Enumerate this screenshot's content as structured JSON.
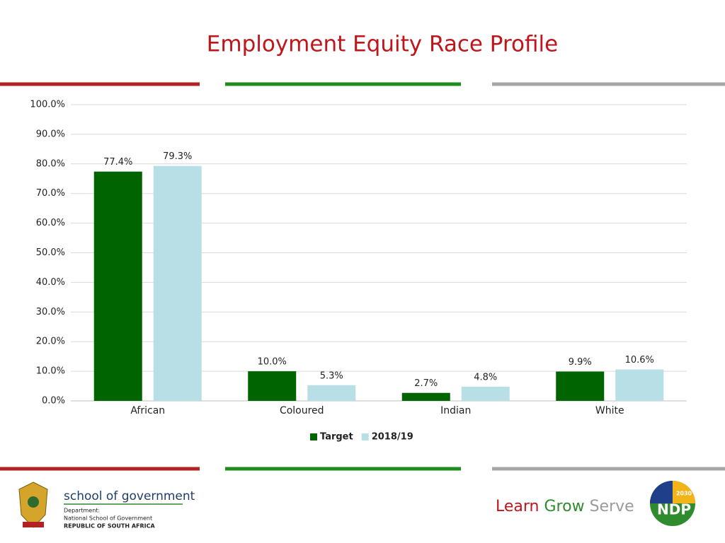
{
  "chart_data": {
    "type": "bar",
    "title": "Employment Equity Race Profile",
    "categories": [
      "African",
      "Coloured",
      "Indian",
      "White"
    ],
    "series": [
      {
        "name": "Target",
        "color": "#006400",
        "values": [
          77.4,
          10.0,
          2.7,
          9.9
        ],
        "value_labels": [
          "77.4%",
          "10.0%",
          "2.7%",
          "9.9%"
        ]
      },
      {
        "name": "2018/19",
        "color": "#b9dfe6",
        "values": [
          79.3,
          5.3,
          4.8,
          10.6
        ],
        "value_labels": [
          "79.3%",
          "5.3%",
          "4.8%",
          "10.6%"
        ]
      }
    ],
    "ylim": [
      0,
      100
    ],
    "yticks": [
      {
        "value": 0,
        "label": "0.0%"
      },
      {
        "value": 10,
        "label": "10.0%"
      },
      {
        "value": 20,
        "label": "20.0%"
      },
      {
        "value": 30,
        "label": "30.0%"
      },
      {
        "value": 40,
        "label": "40.0%"
      },
      {
        "value": 50,
        "label": "50.0%"
      },
      {
        "value": 60,
        "label": "60.0%"
      },
      {
        "value": 70,
        "label": "70.0%"
      },
      {
        "value": 80,
        "label": "80.0%"
      },
      {
        "value": 90,
        "label": "90.0%"
      },
      {
        "value": 100,
        "label": "100.0%"
      }
    ],
    "grid": true,
    "legend": "bottom"
  },
  "footer": {
    "brand": "school of government",
    "department": "Department:",
    "school": "National School of Government",
    "country": "REPUBLIC OF SOUTH AFRICA",
    "tagline": [
      "Learn",
      "Grow",
      "Serve"
    ],
    "logo_text": "NDP",
    "logo_year": "2030"
  }
}
